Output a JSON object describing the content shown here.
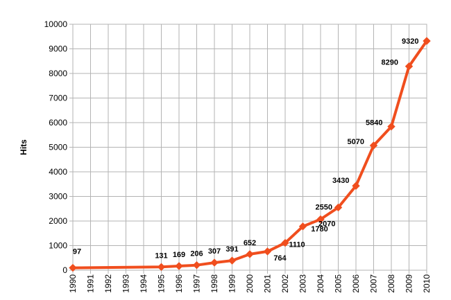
{
  "chart_data": {
    "type": "line",
    "title": "",
    "xlabel": "",
    "ylabel": "Hits",
    "x": [
      "1990",
      "1991",
      "1992",
      "1993",
      "1994",
      "1995",
      "1996",
      "1997",
      "1998",
      "1999",
      "2000",
      "2001",
      "2002",
      "2003",
      "2004",
      "2005",
      "2006",
      "2007",
      "2008",
      "2009",
      "2010"
    ],
    "series": [
      {
        "name": "",
        "color": "#f04e1e",
        "values": [
          97,
          null,
          null,
          null,
          null,
          131,
          169,
          206,
          307,
          391,
          652,
          764,
          1110,
          1780,
          2070,
          2550,
          3430,
          5070,
          5840,
          8290,
          9320
        ]
      }
    ],
    "ylim": [
      0,
      10000
    ],
    "yticks": [
      "0",
      "1000",
      "2000",
      "3000",
      "4000",
      "5000",
      "6000",
      "7000",
      "8000",
      "9000",
      "10000"
    ],
    "grid": true,
    "legend": "none"
  }
}
